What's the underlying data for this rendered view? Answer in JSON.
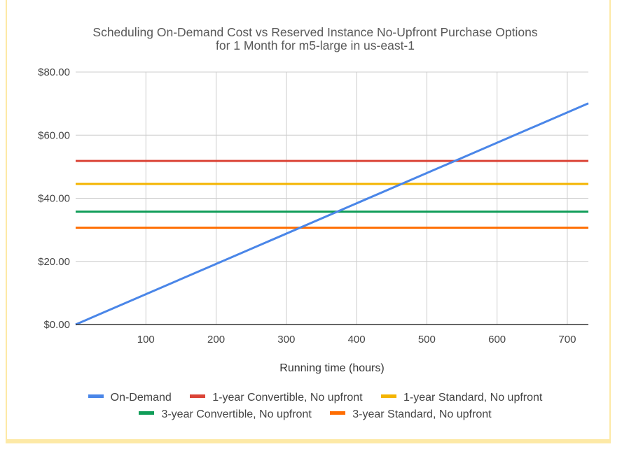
{
  "chart_data": {
    "type": "line",
    "title": "Scheduling On-Demand Cost vs Reserved Instance No-Upfront Purchase Options",
    "subtitle": "for 1 Month for m5-large in us-east-1",
    "xlabel": "Running time (hours)",
    "ylabel": "",
    "xlim": [
      0,
      730
    ],
    "ylim": [
      0,
      80
    ],
    "x_ticks": [
      100,
      200,
      300,
      400,
      500,
      600,
      700
    ],
    "x_tick_labels": [
      "100",
      "200",
      "300",
      "400",
      "500",
      "600",
      "700"
    ],
    "y_ticks": [
      0,
      20,
      40,
      60,
      80
    ],
    "y_tick_labels": [
      "$0.00",
      "$20.00",
      "$40.00",
      "$60.00",
      "$80.00"
    ],
    "grid": true,
    "legend_position": "bottom",
    "series": [
      {
        "name": "On-Demand",
        "color": "#4a86e8",
        "x": [
          0,
          730
        ],
        "values": [
          0,
          70.08
        ]
      },
      {
        "name": "1-year Convertible, No upfront",
        "color": "#db4437",
        "x": [
          0,
          730
        ],
        "values": [
          51.83,
          51.83
        ]
      },
      {
        "name": "1-year Standard, No upfront",
        "color": "#f4b400",
        "x": [
          0,
          730
        ],
        "values": [
          44.53,
          44.53
        ]
      },
      {
        "name": "3-year Convertible, No upfront",
        "color": "#0f9d58",
        "x": [
          0,
          730
        ],
        "values": [
          35.77,
          35.77
        ]
      },
      {
        "name": "3-year Standard, No upfront",
        "color": "#ff6d01",
        "x": [
          0,
          730
        ],
        "values": [
          30.66,
          30.66
        ]
      }
    ]
  }
}
